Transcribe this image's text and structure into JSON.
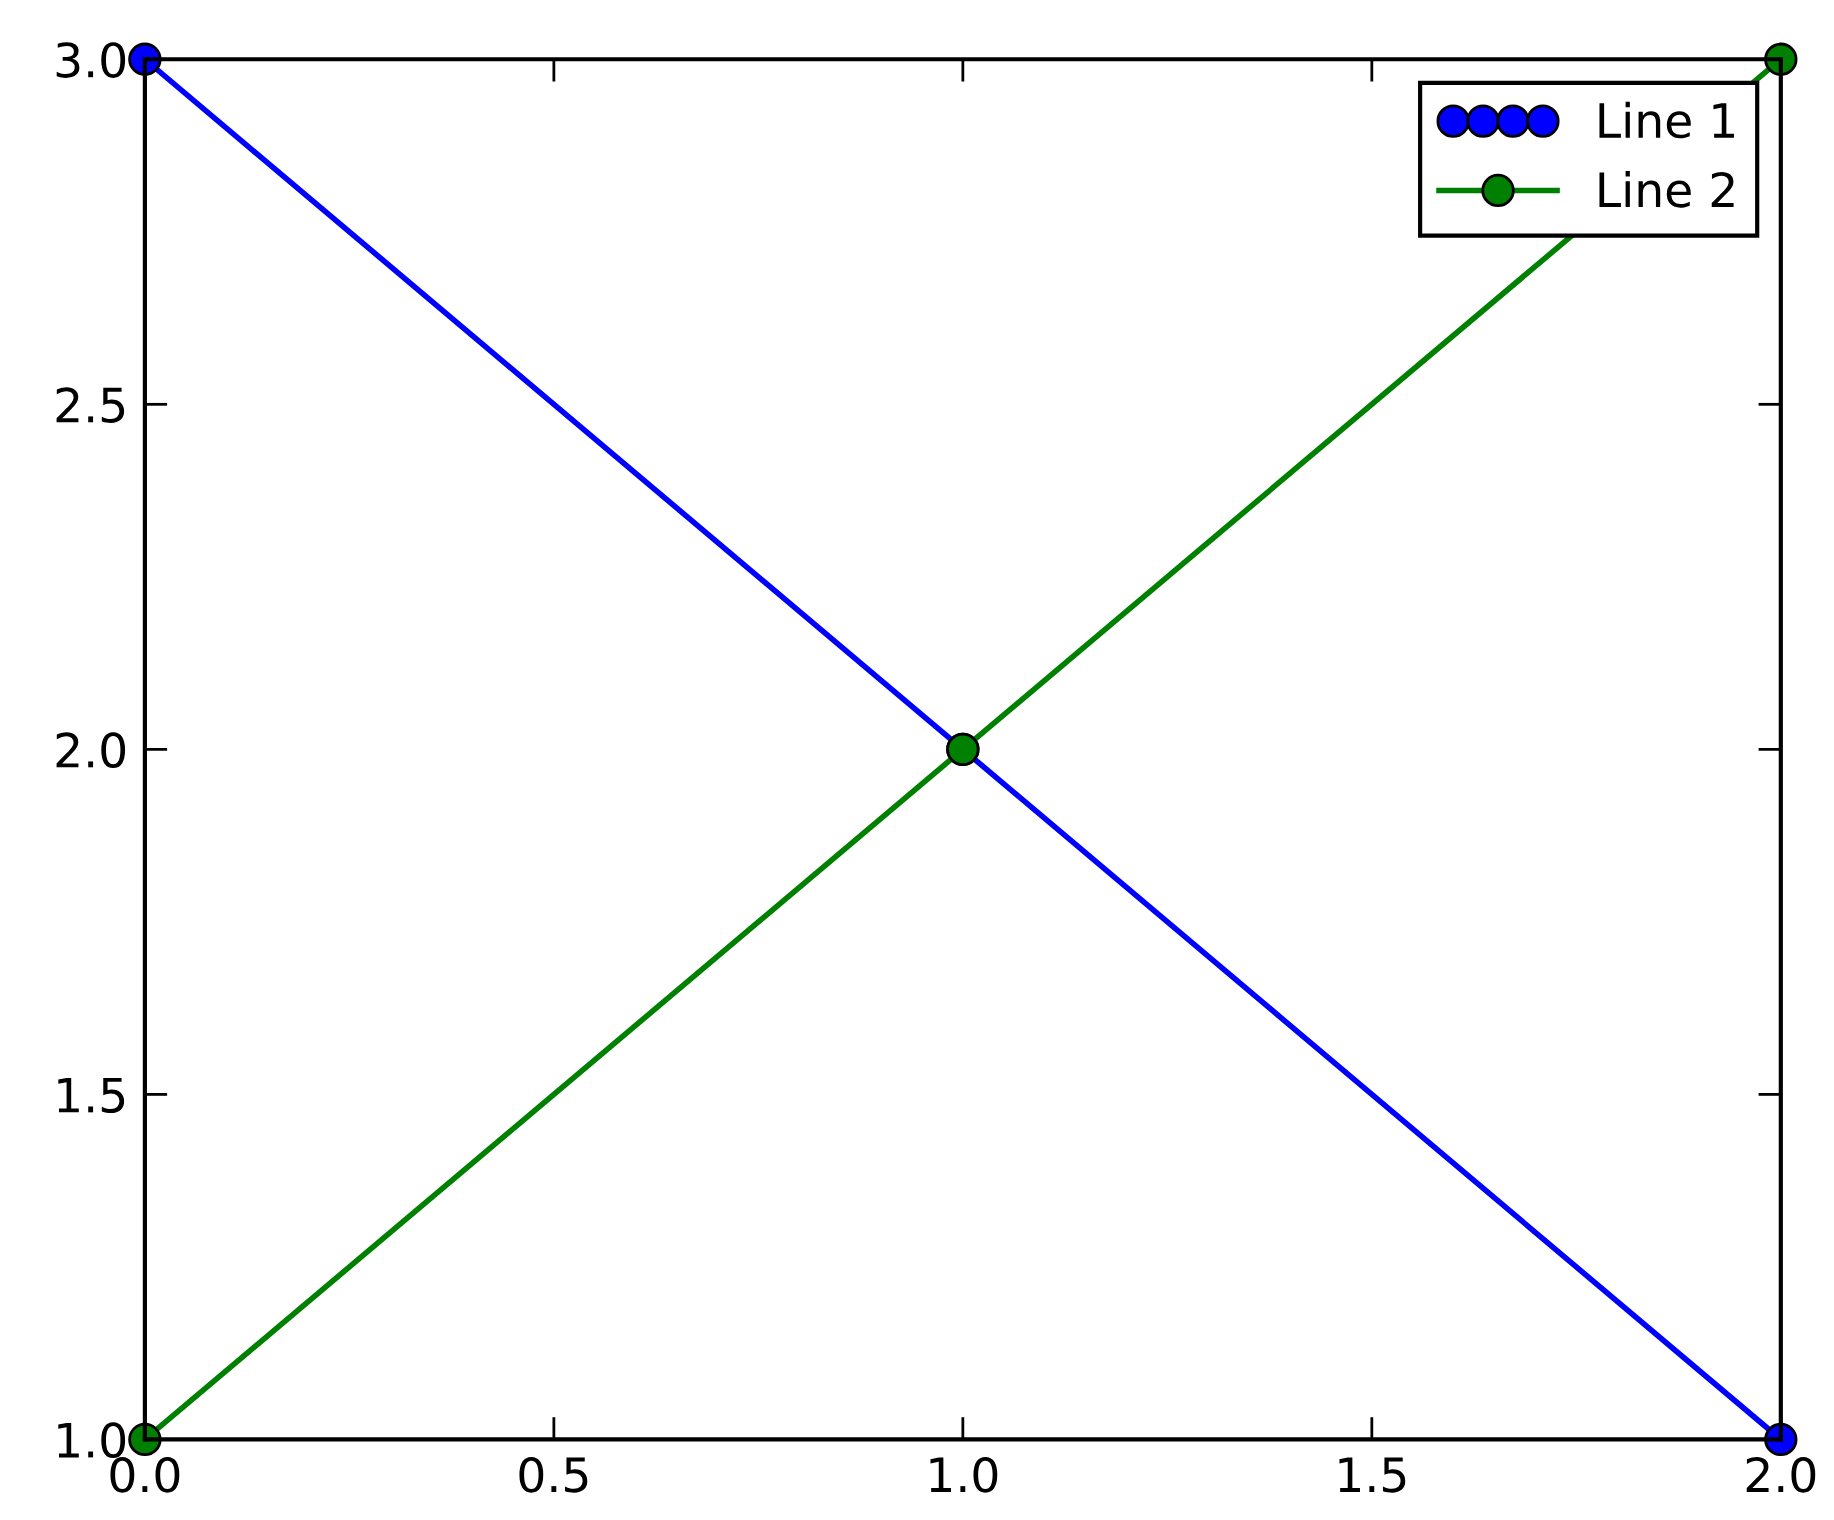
{
  "chart_data": {
    "type": "line",
    "x": [
      0,
      1,
      2
    ],
    "series": [
      {
        "name": "Line 1",
        "color": "#0000ff",
        "values": [
          3,
          2,
          1
        ]
      },
      {
        "name": "Line 2",
        "color": "#008000",
        "values": [
          1,
          2,
          3
        ]
      }
    ],
    "xlim": [
      0,
      2
    ],
    "ylim": [
      1,
      3
    ],
    "xticks": [
      {
        "value": 0,
        "label": "0.0"
      },
      0.5,
      {
        "value": 1,
        "label": "1.0"
      },
      1.5,
      {
        "value": 2,
        "label": "2.0"
      }
    ],
    "yticks": [
      {
        "value": 1,
        "label": "1.0"
      },
      1.5,
      {
        "value": 2,
        "label": "2.0"
      },
      2.5,
      {
        "value": 3,
        "label": "3.0"
      }
    ],
    "marker": "circle",
    "line_style": "solid",
    "legend": "top right",
    "grid": false
  }
}
